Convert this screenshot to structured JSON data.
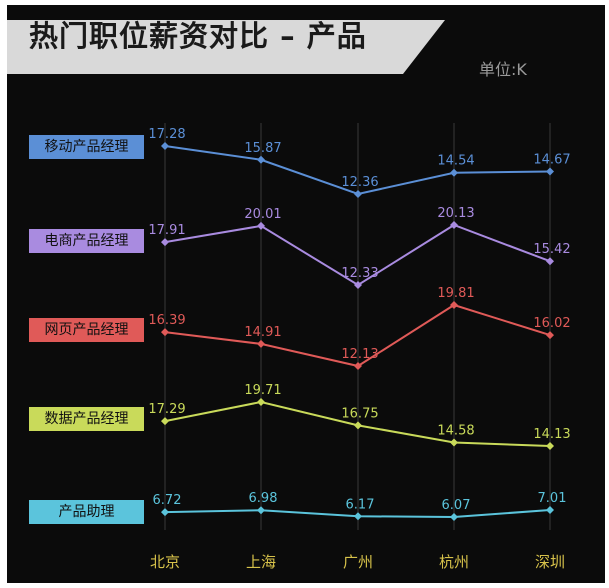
{
  "header": {
    "title": "热门职位薪资对比 – 产品",
    "unit": "单位:K"
  },
  "colors": {
    "background": "#0b0b0b",
    "banner": "#d9d9d9",
    "axis_label": "#d7c24a",
    "gridline": "#3a3a3a"
  },
  "chart_data": {
    "type": "line",
    "title": "热门职位薪资对比 – 产品",
    "unit": "单位:K",
    "categories": [
      "北京",
      "上海",
      "广州",
      "杭州",
      "深圳"
    ],
    "grid": "vertical",
    "legend_position": "left",
    "series": [
      {
        "name": "移动产品经理",
        "color": "#5b8fd6",
        "values": [
          17.28,
          15.87,
          12.36,
          14.54,
          14.67
        ]
      },
      {
        "name": "电商产品经理",
        "color": "#a98be0",
        "values": [
          17.91,
          20.01,
          12.33,
          20.13,
          15.42
        ]
      },
      {
        "name": "网页产品经理",
        "color": "#e05a58",
        "values": [
          16.39,
          14.91,
          12.13,
          19.81,
          16.02
        ]
      },
      {
        "name": "数据产品经理",
        "color": "#c9da5a",
        "values": [
          17.29,
          19.71,
          16.75,
          14.58,
          14.13
        ]
      },
      {
        "name": "产品助理",
        "color": "#5bc4dc",
        "values": [
          6.72,
          6.98,
          6.17,
          6.07,
          7.01
        ]
      }
    ]
  }
}
